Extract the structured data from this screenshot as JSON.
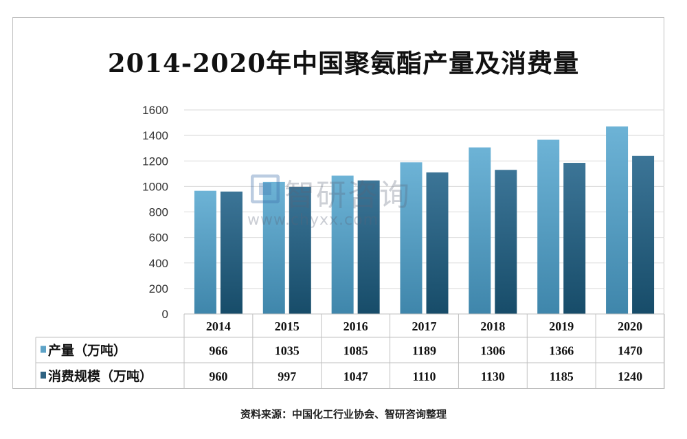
{
  "chart_data": {
    "type": "bar",
    "title": "2014-2020年中国聚氨酯产量及消费量",
    "categories": [
      "2014",
      "2015",
      "2016",
      "2017",
      "2018",
      "2019",
      "2020"
    ],
    "series": [
      {
        "name": "产量（万吨）",
        "values": [
          966,
          1035,
          1085,
          1189,
          1306,
          1366,
          1470
        ],
        "color": "#5ea3c7"
      },
      {
        "name": "消费规模（万吨）",
        "values": [
          960,
          997,
          1047,
          1110,
          1130,
          1185,
          1240
        ],
        "color": "#2f6382"
      }
    ],
    "yticks": [
      0,
      200,
      400,
      600,
      800,
      1000,
      1200,
      1400,
      1600
    ],
    "ylim": [
      0,
      1600
    ],
    "grid": true,
    "legend": "data-table"
  },
  "watermark": {
    "name": "智研咨询",
    "url": "www.chyxx.com"
  },
  "source": "资料来源：中国化工行业协会、智研咨询整理"
}
